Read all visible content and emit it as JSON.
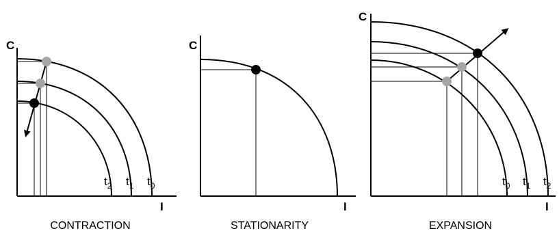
{
  "panels": [
    {
      "id": "contraction",
      "caption": "CONTRACTION",
      "y_axis_label": "C",
      "x_axis_label": "",
      "curve_labels": [
        {
          "base": "t",
          "sub": "2"
        },
        {
          "base": "t",
          "sub": "1"
        },
        {
          "base": "t",
          "sub": "0"
        }
      ]
    },
    {
      "id": "stationarity",
      "caption": "STATIONARITY",
      "y_axis_label": "C",
      "x_axis_label": "I",
      "curve_labels": []
    },
    {
      "id": "expansion",
      "caption": "EXPANSION",
      "y_axis_label": "C",
      "x_axis_label": "I",
      "curve_labels": [
        {
          "base": "t",
          "sub": "0"
        },
        {
          "base": "t",
          "sub": "1"
        },
        {
          "base": "t",
          "sub": "2"
        }
      ]
    }
  ],
  "contraction_x_label": "I",
  "colors": {
    "current_point": "#000000",
    "past_point": "#a6a6a6",
    "line": "#000000"
  }
}
